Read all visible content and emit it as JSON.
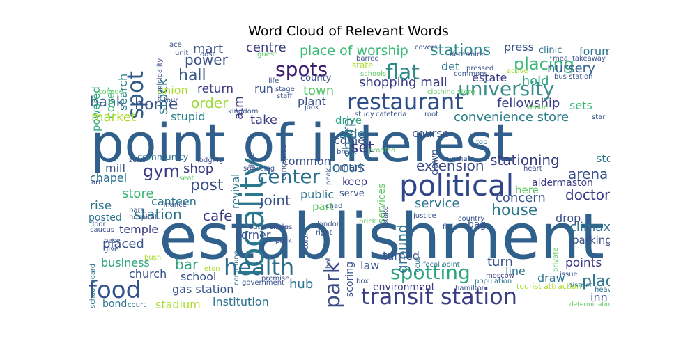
{
  "title": "Word Cloud of Relevant Words",
  "palette": [
    "#440154",
    "#472d7b",
    "#3b528b",
    "#2c728e",
    "#21918c",
    "#28ae80",
    "#5ec962",
    "#addc30",
    "#fde725"
  ],
  "words": [
    {
      "text": "point of interest",
      "color": "#2f5f8a"
    },
    {
      "text": "establishment",
      "color": "#30608c"
    },
    {
      "text": "locality",
      "color": "#2a788e"
    },
    {
      "text": "political",
      "color": "#31458a"
    },
    {
      "text": "transit station",
      "color": "#3a3c84"
    },
    {
      "text": "restaurant",
      "color": "#2d4e8a"
    },
    {
      "text": "university",
      "color": "#3b8e8c"
    },
    {
      "text": "health",
      "color": "#2c6e8e"
    },
    {
      "text": "food",
      "color": "#34528c"
    },
    {
      "text": "spots",
      "color": "#3a1d6e"
    },
    {
      "text": "flat",
      "color": "#2e8a8a"
    },
    {
      "text": "spot",
      "color": "#2f5b8c"
    },
    {
      "text": "park",
      "color": "#3b4d89"
    },
    {
      "text": "spotting",
      "color": "#2aa57e"
    },
    {
      "text": "center",
      "color": "#2b6f8e"
    },
    {
      "text": "gym",
      "color": "#3b3a83"
    },
    {
      "text": "stations",
      "color": "#2b8b8c"
    },
    {
      "text": "placing",
      "color": "#35b778"
    },
    {
      "text": "home",
      "color": "#3b518b"
    },
    {
      "text": "set",
      "color": "#3a3b84"
    },
    {
      "text": "place of worship",
      "color": "#3aba76"
    },
    {
      "text": "house",
      "color": "#2a788e"
    },
    {
      "text": "hall",
      "color": "#3a5a8c"
    },
    {
      "text": "place",
      "color": "#2b758e"
    },
    {
      "text": "bank",
      "color": "#35608d"
    },
    {
      "text": "convenience store",
      "color": "#2c808d"
    },
    {
      "text": "shopping mall",
      "color": "#3a3c85"
    },
    {
      "text": "post",
      "color": "#3b518b"
    },
    {
      "text": "stationing",
      "color": "#3b3b84"
    },
    {
      "text": "extension",
      "color": "#3a4b88"
    },
    {
      "text": "ground",
      "color": "#2c738e"
    },
    {
      "text": "locus",
      "color": "#2e6b8e"
    },
    {
      "text": "joint",
      "color": "#3b518b"
    },
    {
      "text": "sharp",
      "color": "#2d738e"
    },
    {
      "text": "order",
      "color": "#9dd93b"
    },
    {
      "text": "power",
      "color": "#3b528b"
    },
    {
      "text": "stock",
      "color": "#2d7e8e"
    },
    {
      "text": "mart",
      "color": "#3a538b"
    },
    {
      "text": "fellowship",
      "color": "#3a3b84"
    },
    {
      "text": "nursery",
      "color": "#35608d"
    },
    {
      "text": ".hold",
      "color": "#2aa67e"
    },
    {
      "text": "estate",
      "color": "#3a3b84"
    },
    {
      "text": "det",
      "color": "#2c738e"
    },
    {
      "text": "press",
      "color": "#3a528b"
    },
    {
      "text": "forum",
      "color": "#2c738e"
    },
    {
      "text": "clinic",
      "color": "#2c738e"
    },
    {
      "text": "centre",
      "color": "#3b3b84"
    },
    {
      "text": "town",
      "color": "#56c667"
    },
    {
      "text": "run",
      "color": "#3b518b"
    },
    {
      "text": "plant",
      "color": "#3b528b"
    },
    {
      "text": "county",
      "color": "#3a528b"
    },
    {
      "text": "atm",
      "color": "#3b3b84"
    },
    {
      "text": "return",
      "color": "#3a3b84"
    },
    {
      "text": "union",
      "color": "#addc30"
    },
    {
      "text": "cover",
      "color": "#36b677"
    },
    {
      "text": "search",
      "color": "#2b7e8e"
    },
    {
      "text": "powered",
      "color": "#2aa57e"
    },
    {
      "text": "market",
      "color": "#addc30"
    },
    {
      "text": "stupid",
      "color": "#2a7f8e"
    },
    {
      "text": "take",
      "color": "#3b3b84"
    },
    {
      "text": "side",
      "color": "#2c738e"
    },
    {
      "text": "course",
      "color": "#3a538b"
    },
    {
      "text": "drive",
      "color": "#2ca37f"
    },
    {
      "text": "come",
      "color": "#3a528b"
    },
    {
      "text": "sets",
      "color": "#3bb876"
    },
    {
      "text": "shopping",
      "color": "#3a528b"
    },
    {
      "text": "stop",
      "color": "#2c738e"
    },
    {
      "text": "arena",
      "color": "#3a538b"
    },
    {
      "text": "doctor",
      "color": "#3b3a84"
    },
    {
      "text": "concern",
      "color": "#3a528b"
    },
    {
      "text": "drop",
      "color": "#3b528b"
    },
    {
      "text": "climax",
      "color": "#2c738e"
    },
    {
      "text": "aldermaston",
      "color": "#3a3b84"
    },
    {
      "text": "parking",
      "color": "#3a528b"
    },
    {
      "text": "here",
      "color": "#5ec962"
    },
    {
      "text": "down",
      "color": "#3a528b"
    },
    {
      "text": "service",
      "color": "#2c738e"
    },
    {
      "text": "bag",
      "color": "#3a528b"
    },
    {
      "text": "mill",
      "color": "#3a528b"
    },
    {
      "text": "community",
      "color": "#2c738e"
    },
    {
      "text": "shop",
      "color": "#3b3b84"
    },
    {
      "text": "chapel",
      "color": "#2c738e"
    },
    {
      "text": "store",
      "color": "#3bb876"
    },
    {
      "text": "canteen",
      "color": "#2c738e"
    },
    {
      "text": "rise",
      "color": "#2c738e"
    },
    {
      "text": "station",
      "color": "#2c738e"
    },
    {
      "text": "cafe",
      "color": "#3b3b84"
    },
    {
      "text": "temple",
      "color": "#3b3b84"
    },
    {
      "text": "posted",
      "color": "#2c738e"
    },
    {
      "text": "revival",
      "color": "#2c738e"
    },
    {
      "text": "public",
      "color": "#2c738e"
    },
    {
      "text": "part",
      "color": "#5ec962"
    },
    {
      "text": "corner",
      "color": "#3a528b"
    },
    {
      "text": "keep",
      "color": "#3b3b84"
    },
    {
      "text": "mark",
      "color": "#3a528b"
    },
    {
      "text": "common",
      "color": "#3a528b"
    },
    {
      "text": "services",
      "color": "#5ec962"
    },
    {
      "text": "serve",
      "color": "#3a528b"
    },
    {
      "text": "placed",
      "color": "#3a528b"
    },
    {
      "text": "business",
      "color": "#2ca37f"
    },
    {
      "text": "bar",
      "color": "#2ca37f"
    },
    {
      "text": "church",
      "color": "#3a528b"
    },
    {
      "text": "school",
      "color": "#3a528b"
    },
    {
      "text": "gas station",
      "color": "#3a528b"
    },
    {
      "text": "stadium",
      "color": "#addc30"
    },
    {
      "text": "institution",
      "color": "#2c738e"
    },
    {
      "text": "hub",
      "color": "#2c738e"
    },
    {
      "text": "law",
      "color": "#3a528b"
    },
    {
      "text": "turned",
      "color": "#3a528b"
    },
    {
      "text": "scoring",
      "color": "#3a528b"
    },
    {
      "text": "turn",
      "color": "#3a528b"
    },
    {
      "text": "line",
      "color": "#2c738e"
    },
    {
      "text": "draw",
      "color": "#2c738e"
    },
    {
      "text": "points",
      "color": "#3b3b84"
    },
    {
      "text": "raise",
      "color": "#5ec962"
    },
    {
      "text": "inn",
      "color": "#3a528b"
    },
    {
      "text": "environment",
      "color": "#3b3b84"
    },
    {
      "text": "bond",
      "color": "#2c738e"
    },
    {
      "text": "heavy",
      "color": "#2c738e"
    },
    {
      "text": "tourist attraction",
      "color": "#addc30"
    },
    {
      "text": "issue",
      "color": "#3a528b"
    },
    {
      "text": "district",
      "color": "#2c738e"
    },
    {
      "text": "determination",
      "color": "#5ec962"
    },
    {
      "text": "hamilton",
      "color": "#3a528b"
    },
    {
      "text": "moscow",
      "color": "#3b3b84"
    },
    {
      "text": "population",
      "color": "#2c738e"
    },
    {
      "text": "focal point",
      "color": "#2c738e"
    },
    {
      "text": "focus",
      "color": "#2c738e"
    },
    {
      "text": "meal takeaway",
      "color": "#3a528b"
    },
    {
      "text": "bus station",
      "color": "#3a528b"
    },
    {
      "text": "school board",
      "color": "#2c738e"
    },
    {
      "text": "court",
      "color": "#2c738e"
    },
    {
      "text": "government",
      "color": "#3a528b"
    },
    {
      "text": "eton",
      "color": "#addc30"
    },
    {
      "text": "premise",
      "color": "#3a528b"
    },
    {
      "text": "commune",
      "color": "#2c738e"
    },
    {
      "text": "right",
      "color": "#3a528b"
    },
    {
      "text": "london",
      "color": "#3a528b"
    },
    {
      "text": "justice",
      "color": "#3a528b"
    },
    {
      "text": "field",
      "color": "#3a528b"
    },
    {
      "text": "country",
      "color": "#3a528b"
    },
    {
      "text": "floor",
      "color": "#3a528b"
    },
    {
      "text": "bars",
      "color": "#3a528b"
    },
    {
      "text": "caucus",
      "color": "#3a528b"
    },
    {
      "text": "base",
      "color": "#3a528b"
    },
    {
      "text": "give",
      "color": "#3a528b"
    },
    {
      "text": "bush",
      "color": "#addc30"
    },
    {
      "text": "finance",
      "color": "#3a528b"
    },
    {
      "text": "autonomous",
      "color": "#3a528b"
    },
    {
      "text": "circle",
      "color": "#3a528b"
    },
    {
      "text": "hospital",
      "color": "#3a528b"
    },
    {
      "text": "zone",
      "color": "#3a528b"
    },
    {
      "text": "lodging",
      "color": "#3a528b"
    },
    {
      "text": "seat",
      "color": "#5ec962"
    },
    {
      "text": "art",
      "color": "#3a528b"
    },
    {
      "text": "servicing",
      "color": "#3a528b"
    },
    {
      "text": "plate",
      "color": "#3a528b"
    },
    {
      "text": "concourse",
      "color": "#3a528b"
    },
    {
      "text": "peak",
      "color": "#3a528b"
    },
    {
      "text": "break",
      "color": "#3a528b"
    },
    {
      "text": "proofed",
      "color": "#5ec962"
    },
    {
      "text": "stake",
      "color": "#3a528b"
    },
    {
      "text": "internal",
      "color": "#3a528b"
    },
    {
      "text": "heart",
      "color": "#3a528b"
    },
    {
      "text": "top",
      "color": "#2c738e"
    },
    {
      "text": "star",
      "color": "#3a528b"
    },
    {
      "text": "venue",
      "color": "#5ec962"
    },
    {
      "text": "chad",
      "color": "#3a528b"
    },
    {
      "text": "hot",
      "color": "#3a528b"
    },
    {
      "text": "box",
      "color": "#3a528b"
    },
    {
      "text": "pack",
      "color": "#3a528b"
    },
    {
      "text": "prick",
      "color": "#5ec962"
    },
    {
      "text": "color",
      "color": "#3a528b"
    },
    {
      "text": "private",
      "color": "#5ec962"
    },
    {
      "text": "covers",
      "color": "#3a528b"
    },
    {
      "text": "barred",
      "color": "#3a528b"
    },
    {
      "text": "determine",
      "color": "#3a528b"
    },
    {
      "text": "ace",
      "color": "#3a528b"
    },
    {
      "text": "unit",
      "color": "#3a528b"
    },
    {
      "text": "guest",
      "color": "#5ec962"
    },
    {
      "text": "municipality",
      "color": "#3a528b"
    },
    {
      "text": "college",
      "color": "#5ec962"
    },
    {
      "text": "tour",
      "color": "#3a528b"
    },
    {
      "text": "kingdom",
      "color": "#3a528b"
    },
    {
      "text": "life",
      "color": "#3a528b"
    },
    {
      "text": "stage",
      "color": "#3a528b"
    },
    {
      "text": "staff",
      "color": "#3a528b"
    },
    {
      "text": "jook",
      "color": "#3a528b"
    },
    {
      "text": "schools",
      "color": "#5ec962"
    },
    {
      "text": "state",
      "color": "#addc30"
    },
    {
      "text": "study",
      "color": "#3a528b"
    },
    {
      "text": "cafeteria",
      "color": "#3a528b"
    },
    {
      "text": "root",
      "color": "#3a528b"
    },
    {
      "text": "clothing store",
      "color": "#5ec962"
    },
    {
      "text": "commons",
      "color": "#3a528b"
    },
    {
      "text": "pressed",
      "color": "#3a528b"
    },
    {
      "text": "active",
      "color": "#addc30"
    },
    {
      "text": "oost",
      "color": "#3a528b"
    }
  ]
}
